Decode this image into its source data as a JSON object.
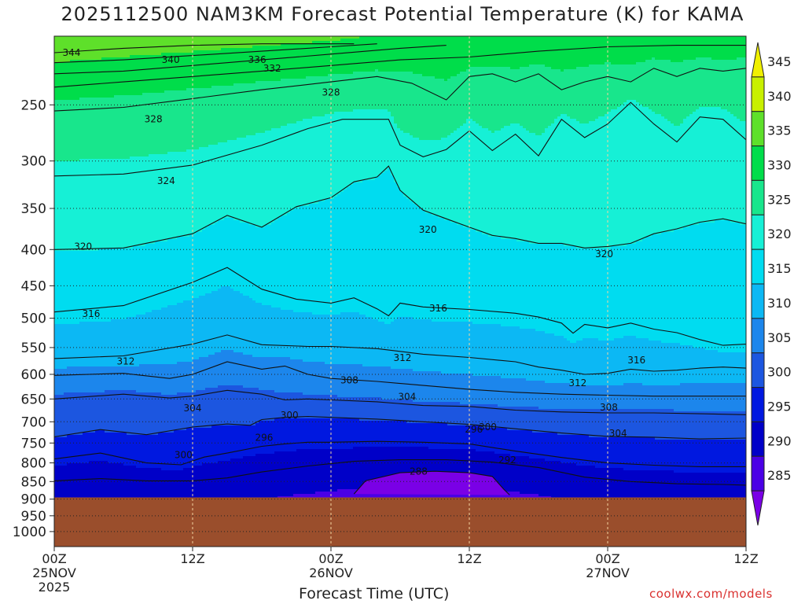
{
  "title": "2025112500 NAM3KM Forecast Potential Temperature (K) for KAMA",
  "xlabel": "Forecast Time (UTC)",
  "credit": "coolwx.com/models",
  "chart_data": {
    "type": "heatmap",
    "title": "2025112500 NAM3KM Forecast Potential Temperature (K) for KAMA",
    "xlabel": "Forecast Time (UTC)",
    "ylabel": "",
    "x_ticks": [
      {
        "h": 0,
        "lines": [
          "00Z",
          "25NOV",
          "2025"
        ]
      },
      {
        "h": 12,
        "lines": [
          "12Z"
        ]
      },
      {
        "h": 24,
        "lines": [
          "00Z",
          "26NOV"
        ]
      },
      {
        "h": 36,
        "lines": [
          "12Z"
        ]
      },
      {
        "h": 48,
        "lines": [
          "00Z",
          "27NOV"
        ]
      },
      {
        "h": 60,
        "lines": [
          "12Z"
        ]
      }
    ],
    "xlim_hours": [
      0,
      60
    ],
    "y_ticks": [
      250,
      300,
      350,
      400,
      450,
      500,
      550,
      600,
      650,
      700,
      750,
      800,
      850,
      900,
      950,
      1000
    ],
    "ylim_hPa": [
      1050,
      200
    ],
    "y_scale": "log-pressure",
    "surface_pressure_hPa": 895,
    "colorbar_ticks": [
      285,
      290,
      295,
      300,
      305,
      310,
      315,
      320,
      325,
      330,
      335,
      340,
      345
    ],
    "colorbar_colors": [
      "#7a00e6",
      "#4a00e6",
      "#0000c8",
      "#0018e0",
      "#1c56e0",
      "#1c86ec",
      "#0cb8f4",
      "#00dcf0",
      "#16f0d6",
      "#18e68c",
      "#00dd4a",
      "#5ee02a",
      "#c8f000",
      "#f0f000"
    ],
    "contour_interval_K": 2,
    "grid": true,
    "ground_color": "#9a4e2c",
    "contour_labels": [
      {
        "t": 1.5,
        "p": 211,
        "v": "344"
      },
      {
        "t": 10.1,
        "p": 216,
        "v": "340"
      },
      {
        "t": 17.6,
        "p": 216,
        "v": "336"
      },
      {
        "t": 18.9,
        "p": 222,
        "v": "332"
      },
      {
        "t": 24.0,
        "p": 240,
        "v": "328"
      },
      {
        "t": 8.6,
        "p": 262,
        "v": "328"
      },
      {
        "t": 9.7,
        "p": 320,
        "v": "324"
      },
      {
        "t": 2.5,
        "p": 396,
        "v": "320"
      },
      {
        "t": 32.4,
        "p": 375,
        "v": "320"
      },
      {
        "t": 47.7,
        "p": 406,
        "v": "320"
      },
      {
        "t": 3.2,
        "p": 493,
        "v": "316"
      },
      {
        "t": 33.3,
        "p": 484,
        "v": "316"
      },
      {
        "t": 50.5,
        "p": 573,
        "v": "316"
      },
      {
        "t": 6.2,
        "p": 575,
        "v": "312"
      },
      {
        "t": 30.2,
        "p": 569,
        "v": "312"
      },
      {
        "t": 45.4,
        "p": 617,
        "v": "312"
      },
      {
        "t": 25.6,
        "p": 612,
        "v": "308"
      },
      {
        "t": 48.1,
        "p": 668,
        "v": "308"
      },
      {
        "t": 30.6,
        "p": 645,
        "v": "304"
      },
      {
        "t": 12.0,
        "p": 670,
        "v": "304"
      },
      {
        "t": 48.9,
        "p": 727,
        "v": "304"
      },
      {
        "t": 20.4,
        "p": 685,
        "v": "300"
      },
      {
        "t": 37.6,
        "p": 712,
        "v": "300"
      },
      {
        "t": 11.2,
        "p": 780,
        "v": "300"
      },
      {
        "t": 18.2,
        "p": 737,
        "v": "296"
      },
      {
        "t": 36.4,
        "p": 718,
        "v": "296"
      },
      {
        "t": 39.3,
        "p": 793,
        "v": "292"
      },
      {
        "t": 31.6,
        "p": 823,
        "v": "288"
      }
    ],
    "isotherm_traces": [
      {
        "v": 344,
        "pts": [
          [
            0,
            211
          ],
          [
            6,
            208
          ],
          [
            12,
            206
          ],
          [
            18,
            205
          ],
          [
            24,
            205
          ],
          [
            26,
            205
          ]
        ]
      },
      {
        "v": 340,
        "pts": [
          [
            0,
            218
          ],
          [
            6,
            216
          ],
          [
            12,
            213
          ],
          [
            18,
            210
          ],
          [
            24,
            207
          ],
          [
            28,
            205
          ]
        ]
      },
      {
        "v": 336,
        "pts": [
          [
            0,
            226
          ],
          [
            6,
            224
          ],
          [
            12,
            220
          ],
          [
            18,
            216
          ],
          [
            24,
            212
          ],
          [
            30,
            208
          ],
          [
            34,
            206
          ]
        ]
      },
      {
        "v": 332,
        "pts": [
          [
            0,
            236
          ],
          [
            6,
            232
          ],
          [
            12,
            228
          ],
          [
            18,
            224
          ],
          [
            24,
            220
          ],
          [
            30,
            216
          ],
          [
            36,
            214
          ],
          [
            42,
            210
          ],
          [
            48,
            207
          ],
          [
            54,
            206
          ],
          [
            60,
            206
          ]
        ]
      },
      {
        "v": 328,
        "pts": [
          [
            0,
            255
          ],
          [
            6,
            252
          ],
          [
            12,
            245
          ],
          [
            18,
            238
          ],
          [
            24,
            232
          ],
          [
            28,
            228
          ],
          [
            31,
            233
          ],
          [
            34,
            246
          ],
          [
            36,
            228
          ],
          [
            38,
            226
          ],
          [
            40,
            232
          ],
          [
            42,
            226
          ],
          [
            44,
            238
          ],
          [
            46,
            232
          ],
          [
            48,
            228
          ],
          [
            50,
            232
          ],
          [
            52,
            222
          ],
          [
            54,
            228
          ],
          [
            56,
            222
          ],
          [
            58,
            224
          ],
          [
            60,
            222
          ]
        ]
      },
      {
        "v": 324,
        "pts": [
          [
            0,
            315
          ],
          [
            6,
            313
          ],
          [
            12,
            304
          ],
          [
            18,
            285
          ],
          [
            22,
            270
          ],
          [
            25,
            262
          ],
          [
            28,
            262
          ],
          [
            29,
            262
          ],
          [
            30,
            285
          ],
          [
            32,
            296
          ],
          [
            34,
            289
          ],
          [
            36,
            272
          ],
          [
            38,
            290
          ],
          [
            40,
            275
          ],
          [
            42,
            295
          ],
          [
            44,
            262
          ],
          [
            46,
            278
          ],
          [
            48,
            266
          ],
          [
            50,
            248
          ],
          [
            52,
            266
          ],
          [
            54,
            282
          ],
          [
            56,
            260
          ],
          [
            58,
            262
          ],
          [
            60,
            280
          ]
        ]
      },
      {
        "v": 320,
        "pts": [
          [
            0,
            400
          ],
          [
            6,
            398
          ],
          [
            12,
            380
          ],
          [
            15,
            358
          ],
          [
            18,
            372
          ],
          [
            21,
            348
          ],
          [
            24,
            338
          ],
          [
            26,
            321
          ],
          [
            28,
            316
          ],
          [
            29,
            305
          ],
          [
            30,
            330
          ],
          [
            32,
            352
          ],
          [
            34,
            362
          ],
          [
            36,
            372
          ],
          [
            38,
            382
          ],
          [
            40,
            386
          ],
          [
            42,
            392
          ],
          [
            44,
            392
          ],
          [
            46,
            398
          ],
          [
            48,
            396
          ],
          [
            50,
            392
          ],
          [
            52,
            380
          ],
          [
            54,
            374
          ],
          [
            56,
            366
          ],
          [
            58,
            362
          ],
          [
            60,
            368
          ]
        ]
      },
      {
        "v": 316,
        "pts": [
          [
            0,
            490
          ],
          [
            6,
            480
          ],
          [
            12,
            445
          ],
          [
            15,
            424
          ],
          [
            18,
            455
          ],
          [
            21,
            470
          ],
          [
            24,
            476
          ],
          [
            26,
            468
          ],
          [
            28,
            485
          ],
          [
            29,
            496
          ],
          [
            30,
            476
          ],
          [
            32,
            482
          ],
          [
            36,
            486
          ],
          [
            40,
            492
          ],
          [
            42,
            498
          ],
          [
            44,
            508
          ],
          [
            45,
            525
          ],
          [
            46,
            510
          ],
          [
            48,
            516
          ],
          [
            50,
            508
          ],
          [
            52,
            518
          ],
          [
            54,
            524
          ],
          [
            56,
            536
          ],
          [
            58,
            546
          ],
          [
            60,
            544
          ]
        ]
      },
      {
        "v": 312,
        "pts": [
          [
            0,
            570
          ],
          [
            6,
            565
          ],
          [
            12,
            544
          ],
          [
            15,
            528
          ],
          [
            18,
            545
          ],
          [
            22,
            548
          ],
          [
            24,
            548
          ],
          [
            28,
            552
          ],
          [
            32,
            562
          ],
          [
            36,
            568
          ],
          [
            40,
            576
          ],
          [
            42,
            586
          ],
          [
            44,
            592
          ],
          [
            46,
            600
          ],
          [
            48,
            598
          ],
          [
            50,
            590
          ],
          [
            52,
            594
          ],
          [
            54,
            592
          ],
          [
            56,
            588
          ],
          [
            58,
            586
          ],
          [
            60,
            588
          ]
        ]
      },
      {
        "v": 308,
        "pts": [
          [
            0,
            602
          ],
          [
            6,
            598
          ],
          [
            10,
            608
          ],
          [
            12,
            600
          ],
          [
            15,
            576
          ],
          [
            18,
            590
          ],
          [
            20,
            584
          ],
          [
            22,
            600
          ],
          [
            24,
            608
          ],
          [
            28,
            614
          ],
          [
            32,
            622
          ],
          [
            36,
            630
          ],
          [
            40,
            636
          ],
          [
            44,
            640
          ],
          [
            48,
            642
          ],
          [
            52,
            644
          ],
          [
            56,
            644
          ],
          [
            60,
            644
          ]
        ]
      },
      {
        "v": 304,
        "pts": [
          [
            0,
            650
          ],
          [
            6,
            640
          ],
          [
            10,
            648
          ],
          [
            12,
            644
          ],
          [
            15,
            632
          ],
          [
            18,
            640
          ],
          [
            20,
            652
          ],
          [
            22,
            650
          ],
          [
            24,
            652
          ],
          [
            28,
            656
          ],
          [
            32,
            664
          ],
          [
            36,
            666
          ],
          [
            40,
            674
          ],
          [
            44,
            678
          ],
          [
            48,
            680
          ],
          [
            52,
            680
          ],
          [
            56,
            682
          ],
          [
            60,
            684
          ]
        ]
      },
      {
        "v": 300,
        "pts": [
          [
            0,
            735
          ],
          [
            4,
            718
          ],
          [
            8,
            730
          ],
          [
            12,
            712
          ],
          [
            15,
            705
          ],
          [
            17,
            708
          ],
          [
            18,
            695
          ],
          [
            20,
            690
          ],
          [
            22,
            688
          ],
          [
            24,
            690
          ],
          [
            28,
            694
          ],
          [
            32,
            700
          ],
          [
            36,
            706
          ],
          [
            40,
            716
          ],
          [
            44,
            726
          ],
          [
            48,
            734
          ],
          [
            52,
            736
          ],
          [
            56,
            740
          ],
          [
            60,
            738
          ]
        ]
      },
      {
        "v": 296,
        "pts": [
          [
            0,
            790
          ],
          [
            4,
            775
          ],
          [
            8,
            800
          ],
          [
            11,
            805
          ],
          [
            13,
            785
          ],
          [
            15,
            775
          ],
          [
            18,
            758
          ],
          [
            20,
            752
          ],
          [
            22,
            748
          ],
          [
            24,
            748
          ],
          [
            28,
            746
          ],
          [
            32,
            748
          ],
          [
            36,
            752
          ],
          [
            40,
            770
          ],
          [
            44,
            786
          ],
          [
            48,
            800
          ],
          [
            52,
            806
          ],
          [
            56,
            810
          ],
          [
            60,
            810
          ]
        ]
      },
      {
        "v": 292,
        "pts": [
          [
            0,
            848
          ],
          [
            4,
            842
          ],
          [
            8,
            848
          ],
          [
            12,
            848
          ],
          [
            15,
            840
          ],
          [
            18,
            824
          ],
          [
            22,
            808
          ],
          [
            26,
            796
          ],
          [
            30,
            792
          ],
          [
            34,
            792
          ],
          [
            38,
            798
          ],
          [
            42,
            812
          ],
          [
            46,
            838
          ],
          [
            50,
            850
          ],
          [
            54,
            856
          ],
          [
            58,
            858
          ],
          [
            60,
            860
          ]
        ]
      },
      {
        "v": 288,
        "pts": [
          [
            26,
            885
          ],
          [
            27,
            848
          ],
          [
            30,
            826
          ],
          [
            33,
            822
          ],
          [
            36,
            826
          ],
          [
            38,
            836
          ],
          [
            39,
            872
          ],
          [
            39.5,
            888
          ]
        ]
      }
    ]
  }
}
